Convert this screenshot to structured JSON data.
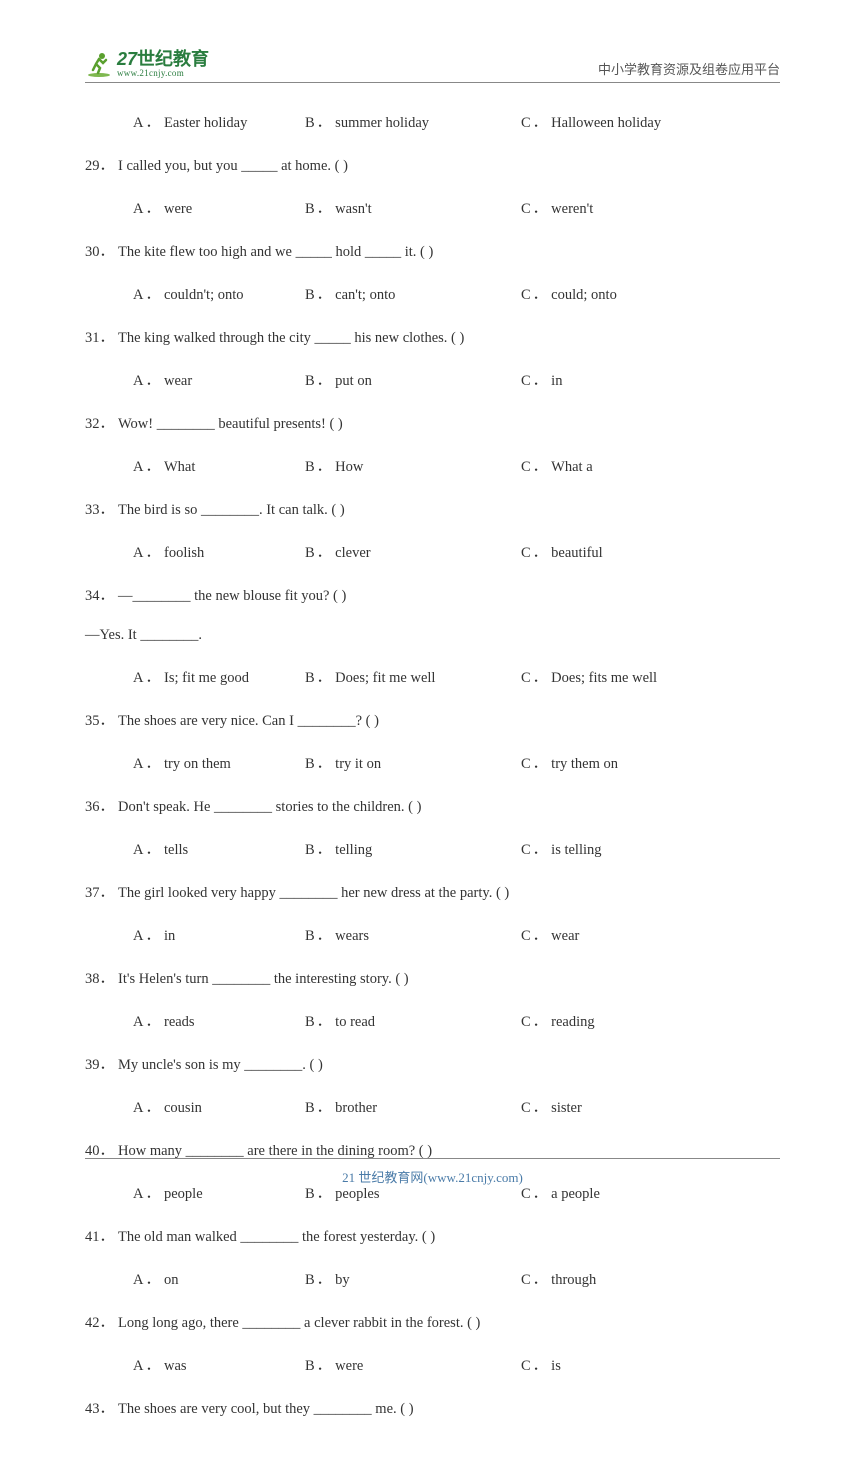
{
  "header": {
    "logo_main": "世纪教育",
    "logo_prefix": "27",
    "logo_sub": "www.21cnjy.com",
    "right_text": "中小学教育资源及组卷应用平台"
  },
  "orphan_options": {
    "a": "Easter holiday",
    "b": "summer holiday",
    "c": "Halloween holiday"
  },
  "questions": [
    {
      "num": "29",
      "text": "I called you, but you _____ at home. (     )",
      "a": "were",
      "b": "wasn't",
      "c": "weren't"
    },
    {
      "num": "30",
      "text": "The kite flew too high and we _____ hold _____ it. (     )",
      "a": "couldn't; onto",
      "b": "can't; onto",
      "c": "could; onto"
    },
    {
      "num": "31",
      "text": "The king walked through the city _____ his new clothes. (     )",
      "a": "wear",
      "b": "put on",
      "c": "in"
    },
    {
      "num": "32",
      "text": "Wow! ________ beautiful presents! (      )",
      "a": "What",
      "b": "How",
      "c": "What a"
    },
    {
      "num": "33",
      "text": "The bird is so ________. It can talk. (      )",
      "a": "foolish",
      "b": "clever",
      "c": "beautiful"
    },
    {
      "num": "34",
      "text": "—________ the new blouse fit you? (      )",
      "continuation": "—Yes. It ________.",
      "a": "Is; fit me good",
      "b": "Does; fit me well",
      "c": "Does; fits me well"
    },
    {
      "num": "35",
      "text": "The shoes are very nice. Can I ________? (      )",
      "a": "try on them",
      "b": "try it on",
      "c": "try them on"
    },
    {
      "num": "36",
      "text": "Don't speak. He ________  stories to the children. (      )",
      "a": "tells",
      "b": "telling",
      "c": "is telling"
    },
    {
      "num": "37",
      "text": "The girl looked very happy ________ her new dress at the party. (      )",
      "a": "in",
      "b": "wears",
      "c": "wear"
    },
    {
      "num": "38",
      "text": "It's Helen's turn ________ the interesting story. (      )",
      "a": "reads",
      "b": "to read",
      "c": "reading"
    },
    {
      "num": "39",
      "text": "My uncle's son is my ________. (      )",
      "a": "cousin",
      "b": "brother",
      "c": "sister"
    },
    {
      "num": "40",
      "text": "How many ________ are there in the dining room? (      )",
      "a": "people",
      "b": "peoples",
      "c": "a people"
    },
    {
      "num": "41",
      "text": "The old man walked ________ the forest yesterday. (      )",
      "a": "on",
      "b": "by",
      "c": "through"
    },
    {
      "num": "42",
      "text": "Long long ago, there ________ a clever rabbit in the forest. (      )",
      "a": "was",
      "b": "were",
      "c": "is"
    },
    {
      "num": "43",
      "text": "The shoes are very cool, but they ________ me. (   )"
    }
  ],
  "footer": {
    "text": "21 世纪教育网(www.21cnjy.com)"
  },
  "colors": {
    "text": "#333333",
    "header_text": "#555555",
    "logo_green": "#2a7d3f",
    "footer_blue": "#4a7ba8",
    "border": "#888888",
    "background": "#ffffff"
  }
}
